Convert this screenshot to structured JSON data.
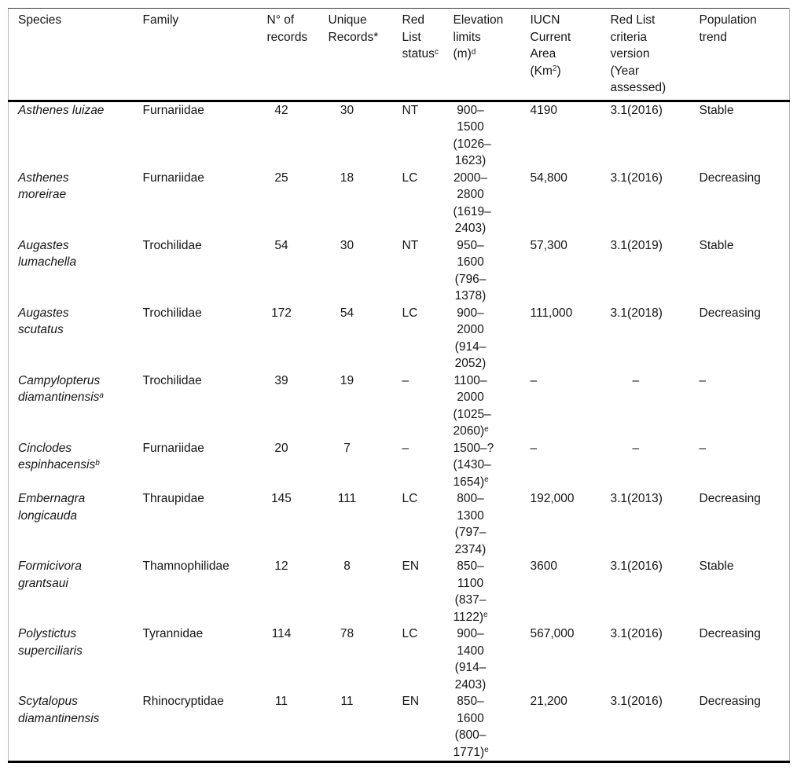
{
  "page": {
    "background_color": "#ffffff",
    "text_color": "#161616",
    "rule_color": "#000000",
    "side_border_color": "#b7b7b7"
  },
  "table": {
    "missing_value": "–",
    "columns": [
      {
        "key": "species",
        "label": "Species",
        "align": "left",
        "italic": true
      },
      {
        "key": "family",
        "label": "Family",
        "align": "left"
      },
      {
        "key": "n_records",
        "label": "N° of records",
        "align": "center"
      },
      {
        "key": "unique_records",
        "label": "Unique Records*",
        "align": "center"
      },
      {
        "key": "red_list_status",
        "label": "Red List status^c",
        "align": "left"
      },
      {
        "key": "elevation",
        "label": "Elevation limits (m)^d",
        "align": "center"
      },
      {
        "key": "iucn_area",
        "label": "IUCN Current Area (Km^2^)",
        "align": "left"
      },
      {
        "key": "criteria",
        "label": "Red List criteria version (Year assessed)",
        "align": "left"
      },
      {
        "key": "trend",
        "label": "Population trend",
        "align": "left"
      }
    ],
    "rows": [
      {
        "species": "Asthenes luizae",
        "family": "Furnariidae",
        "n_records": "42",
        "unique_records": "30",
        "red_list_status": "NT",
        "elevation": "900–1500 (1026–1623)",
        "iucn_area": "4190",
        "criteria": "3.1(2016)",
        "trend": "Stable"
      },
      {
        "species": "Asthenes moreirae",
        "family": "Furnariidae",
        "n_records": "25",
        "unique_records": "18",
        "red_list_status": "LC",
        "elevation": "2000–2800 (1619–2403)",
        "iucn_area": "54,800",
        "criteria": "3.1(2016)",
        "trend": "Decreasing"
      },
      {
        "species": "Augastes lumachella",
        "family": "Trochilidae",
        "n_records": "54",
        "unique_records": "30",
        "red_list_status": "NT",
        "elevation": "950–1600 (796–1378)",
        "iucn_area": "57,300",
        "criteria": "3.1(2019)",
        "trend": "Stable"
      },
      {
        "species": "Augastes scutatus",
        "family": "Trochilidae",
        "n_records": "172",
        "unique_records": "54",
        "red_list_status": "LC",
        "elevation": "900–2000 (914–2052)",
        "iucn_area": "111,000",
        "criteria": "3.1(2018)",
        "trend": "Decreasing"
      },
      {
        "species": "Campylopterus diamantinensis^a",
        "family": "Trochilidae",
        "n_records": "39",
        "unique_records": "19",
        "red_list_status": "–",
        "elevation": "1100–2000 (1025–2060)^e",
        "iucn_area": "–",
        "criteria": "–",
        "trend": "–"
      },
      {
        "species": "Cinclodes espinhacensis^b",
        "family": "Furnariidae",
        "n_records": "20",
        "unique_records": "7",
        "red_list_status": "–",
        "elevation": "1500–? (1430–1654)^e",
        "iucn_area": "–",
        "criteria": "–",
        "trend": "–"
      },
      {
        "species": "Embernagra longicauda",
        "family": "Thraupidae",
        "n_records": "145",
        "unique_records": "111",
        "red_list_status": "LC",
        "elevation": "800–1300 (797–2374)",
        "iucn_area": "192,000",
        "criteria": "3.1(2013)",
        "trend": "Decreasing"
      },
      {
        "species": "Formicivora grantsaui",
        "family": "Thamnophilidae",
        "n_records": "12",
        "unique_records": "8",
        "red_list_status": "EN",
        "elevation": "850–1100 (837–1122)^e",
        "iucn_area": "3600",
        "criteria": "3.1(2016)",
        "trend": "Stable"
      },
      {
        "species": "Polystictus superciliaris",
        "family": "Tyrannidae",
        "n_records": "114",
        "unique_records": "78",
        "red_list_status": "LC",
        "elevation": "900–1400 (914–2403)",
        "iucn_area": "567,000",
        "criteria": "3.1(2016)",
        "trend": "Decreasing"
      },
      {
        "species": "Scytalopus diamantinensis",
        "family": "Rhinocryptidae",
        "n_records": "11",
        "unique_records": "11",
        "red_list_status": "EN",
        "elevation": "850–1600 (800–1771)^e",
        "iucn_area": "21,200",
        "criteria": "3.1(2016)",
        "trend": "Decreasing"
      }
    ]
  }
}
